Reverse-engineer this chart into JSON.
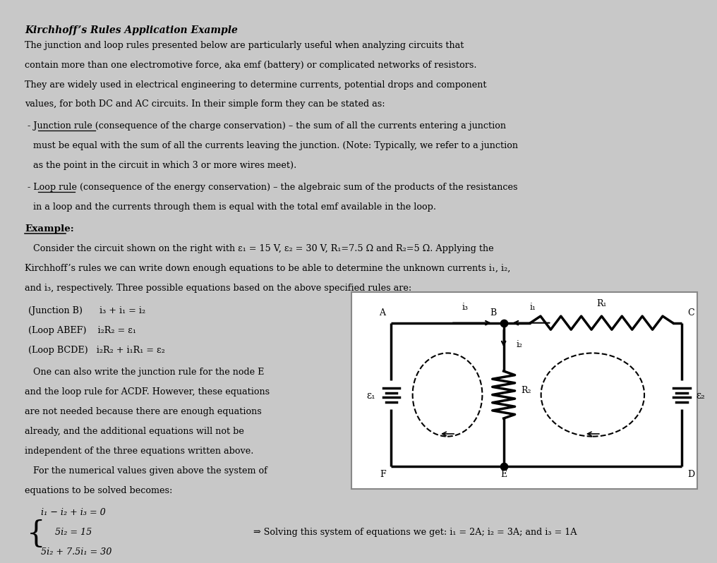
{
  "bg_color": "#c8c8c8",
  "title": "Kirchhoff’s Rules Application Example",
  "body_lines": [
    "The junction and loop rules presented below are particularly useful when analyzing circuits that",
    "contain more than one electromotive force, aka emf (battery) or complicated networks of resistors.",
    "They are widely used in electrical engineering to determine currents, potential drops and component",
    "values, for both DC and AC circuits. In their simple form they can be stated as:"
  ],
  "junction_lines": [
    " - Junction rule (consequence of the charge conservation) – the sum of all the currents entering a junction",
    "   must be equal with the sum of all the currents leaving the junction. (Note: Typically, we refer to a junction",
    "   as the point in the circuit in which 3 or more wires meet)."
  ],
  "loop_lines": [
    " - Loop rule (consequence of the energy conservation) – the algebraic sum of the products of the resistances",
    "   in a loop and the currents through them is equal with the total emf available in the loop."
  ],
  "example_label": "Example:",
  "example_lines": [
    "   Consider the circuit shown on the right with ε₁ = 15 V, ε₂ = 30 V, R₁=7.5 Ω and R₂=5 Ω. Applying the",
    "Kirchhoff’s rules we can write down enough equations to be able to determine the unknown currents i₁, i₂,",
    "and i₃, respectively. Three possible equations based on the above specified rules are:"
  ],
  "eq_lines": [
    "(Junction B)      i₃ + i₁ = i₂",
    "(Loop ABEF)    i₂R₂ = ε₁",
    "(Loop BCDE)   i₂R₂ + i₁R₁ = ε₂"
  ],
  "para_lines": [
    "   One can also write the junction rule for the node E",
    "and the loop rule for ACDF. However, these equations",
    "are not needed because there are enough equations",
    "already, and the additional equations will not be",
    "independent of the three equations written above.",
    "   For the numerical values given above the system of",
    "equations to be solved becomes:"
  ],
  "system_lines": [
    "i₁ − i₂ + i₃ = 0",
    "     5i₂ = 15",
    "5i₂ + 7.5i₁ = 30"
  ],
  "solution_text": "⇒ Solving this system of equations we get: i₁ = 2A; i₂ = 3A; and i₃ = 1A"
}
